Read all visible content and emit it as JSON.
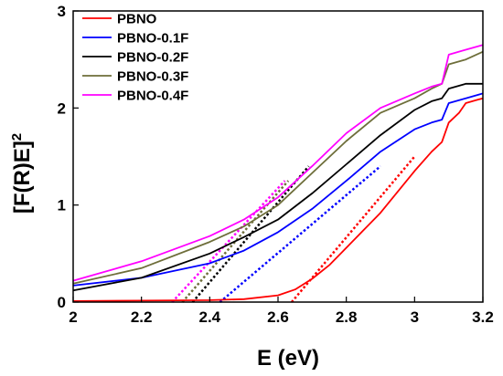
{
  "chart_data": {
    "type": "line",
    "xlabel": "E (eV)",
    "ylabel": "[F(R)E]",
    "ylabel_superscript": "2",
    "xlim": [
      2,
      3.2
    ],
    "ylim": [
      0,
      3
    ],
    "xticks": [
      2,
      2.2,
      2.4,
      2.6,
      2.8,
      3,
      3.2
    ],
    "xtick_labels": [
      "2",
      "2.2",
      "2.4",
      "2.6",
      "2.8",
      "3",
      "3.2"
    ],
    "yticks": [
      0,
      1,
      2,
      3
    ],
    "ytick_labels": [
      "0",
      "1",
      "2",
      "3"
    ],
    "grid": false,
    "legend_position": "top-left",
    "series": [
      {
        "name": "PBNO",
        "color": "#ff0000",
        "x": [
          2.0,
          2.2,
          2.4,
          2.5,
          2.6,
          2.65,
          2.7,
          2.75,
          2.8,
          2.9,
          3.0,
          3.05,
          3.08,
          3.1,
          3.13,
          3.15,
          3.18,
          3.2
        ],
        "y": [
          0.01,
          0.015,
          0.02,
          0.03,
          0.07,
          0.13,
          0.24,
          0.38,
          0.56,
          0.92,
          1.35,
          1.55,
          1.65,
          1.85,
          1.95,
          2.05,
          2.08,
          2.1
        ],
        "tangent": [
          [
            2.64,
            0.0
          ],
          [
            3.0,
            1.5
          ]
        ]
      },
      {
        "name": "PBNO-0.1F",
        "color": "#0000ff",
        "x": [
          2.0,
          2.2,
          2.4,
          2.5,
          2.6,
          2.7,
          2.8,
          2.9,
          3.0,
          3.05,
          3.08,
          3.1,
          3.15,
          3.2
        ],
        "y": [
          0.17,
          0.25,
          0.4,
          0.53,
          0.72,
          0.96,
          1.25,
          1.55,
          1.78,
          1.85,
          1.88,
          2.05,
          2.1,
          2.15
        ],
        "tangent": [
          [
            2.43,
            0.0
          ],
          [
            2.9,
            1.4
          ]
        ]
      },
      {
        "name": "PBNO-0.2F",
        "color": "#000000",
        "x": [
          2.0,
          2.2,
          2.4,
          2.5,
          2.6,
          2.7,
          2.8,
          2.9,
          3.0,
          3.05,
          3.08,
          3.1,
          3.15,
          3.2
        ],
        "y": [
          0.12,
          0.25,
          0.5,
          0.67,
          0.85,
          1.12,
          1.42,
          1.72,
          1.98,
          2.07,
          2.1,
          2.2,
          2.25,
          2.25
        ],
        "tangent": [
          [
            2.35,
            0.0
          ],
          [
            2.69,
            1.4
          ]
        ]
      },
      {
        "name": "PBNO-0.3F",
        "color": "#6e6e3a",
        "x": [
          2.0,
          2.2,
          2.4,
          2.5,
          2.6,
          2.7,
          2.8,
          2.9,
          3.0,
          3.05,
          3.08,
          3.1,
          3.15,
          3.2
        ],
        "y": [
          0.19,
          0.35,
          0.62,
          0.78,
          1.0,
          1.33,
          1.66,
          1.95,
          2.1,
          2.2,
          2.25,
          2.45,
          2.5,
          2.58
        ],
        "tangent": [
          [
            2.32,
            0.0
          ],
          [
            2.63,
            1.25
          ]
        ]
      },
      {
        "name": "PBNO-0.4F",
        "color": "#ff00ff",
        "x": [
          2.0,
          2.2,
          2.4,
          2.5,
          2.6,
          2.7,
          2.8,
          2.9,
          3.0,
          3.05,
          3.08,
          3.1,
          3.15,
          3.2
        ],
        "y": [
          0.22,
          0.42,
          0.68,
          0.85,
          1.08,
          1.4,
          1.74,
          2.0,
          2.15,
          2.22,
          2.25,
          2.55,
          2.6,
          2.65
        ],
        "tangent": [
          [
            2.29,
            0.0
          ],
          [
            2.62,
            1.25
          ]
        ]
      }
    ]
  }
}
